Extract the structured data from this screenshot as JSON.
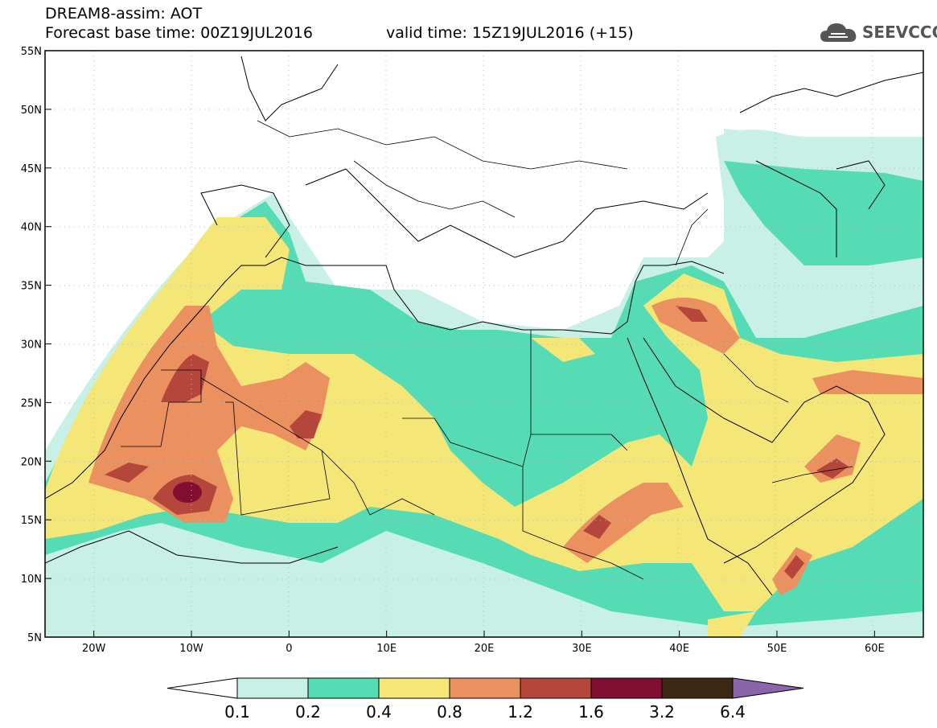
{
  "header": {
    "title": "DREAM8-assim: AOT",
    "base_time": "Forecast base time: 00Z19JUL2016",
    "valid_time": "valid time: 15Z19JUL2016 (+15)"
  },
  "logo": {
    "text": "SEEVCCC",
    "icon": "cloud-icon"
  },
  "map": {
    "lon_range": [
      -25,
      65
    ],
    "lat_range": [
      5,
      55
    ],
    "lon_ticks": [
      {
        "value": -20,
        "label": "20W"
      },
      {
        "value": -10,
        "label": "10W"
      },
      {
        "value": 0,
        "label": "0"
      },
      {
        "value": 10,
        "label": "10E"
      },
      {
        "value": 20,
        "label": "20E"
      },
      {
        "value": 30,
        "label": "30E"
      },
      {
        "value": 40,
        "label": "40E"
      },
      {
        "value": 50,
        "label": "50E"
      },
      {
        "value": 60,
        "label": "60E"
      }
    ],
    "lat_ticks": [
      {
        "value": 5,
        "label": "5N"
      },
      {
        "value": 10,
        "label": "10N"
      },
      {
        "value": 15,
        "label": "15N"
      },
      {
        "value": 20,
        "label": "20N"
      },
      {
        "value": 25,
        "label": "25N"
      },
      {
        "value": 30,
        "label": "30N"
      },
      {
        "value": 35,
        "label": "35N"
      },
      {
        "value": 40,
        "label": "40N"
      },
      {
        "value": 45,
        "label": "45N"
      },
      {
        "value": 50,
        "label": "50N"
      },
      {
        "value": 55,
        "label": "55N"
      }
    ],
    "colors": {
      "c01": "#c8f0e6",
      "c02": "#55dcb4",
      "c04": "#f5e678",
      "c08": "#eb915f",
      "c12": "#b4463c",
      "c16": "#820f32",
      "c32": "#3c2814",
      "c64": "#8c64aa"
    }
  },
  "colorbar": {
    "labels": [
      "0.1",
      "0.2",
      "0.4",
      "0.8",
      "1.2",
      "1.6",
      "3.2",
      "6.4"
    ],
    "colors": [
      "#c8f0e6",
      "#55dcb4",
      "#f5e678",
      "#eb915f",
      "#b4463c",
      "#820f32",
      "#3c2814"
    ],
    "over_color": "#8c64aa",
    "under_color": "#ffffff"
  }
}
